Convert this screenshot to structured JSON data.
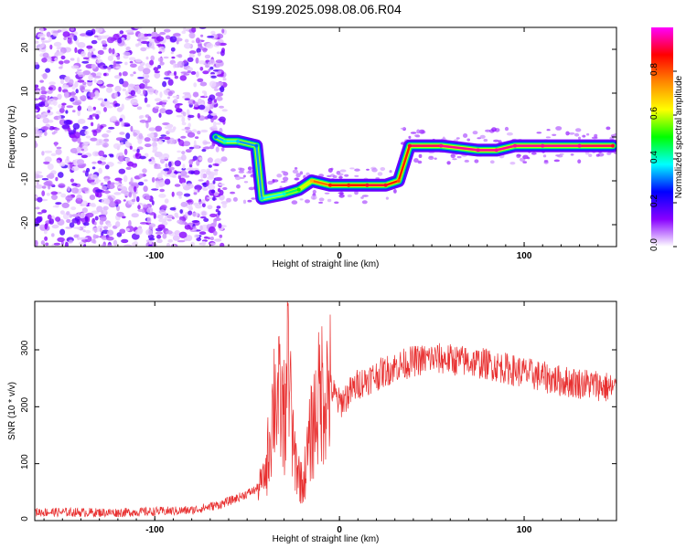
{
  "title": "S199.2025.098.08.06.R04",
  "chart_data": [
    {
      "type": "heatmap",
      "xlabel": "Height of straight line (km)",
      "ylabel": "Frequency (Hz)",
      "xlim": [
        -165,
        150
      ],
      "ylim": [
        -25,
        25
      ],
      "xticks": [
        -100,
        0,
        100
      ],
      "yticks": [
        -20,
        -10,
        0,
        10,
        20
      ],
      "colorbar": {
        "label": "Normalized spectral amplitude",
        "ticks": [
          "0.0",
          "0.2",
          "0.4",
          "0.6",
          "0.8"
        ],
        "range": [
          0,
          1
        ],
        "colors": [
          "#ffffff",
          "#8800ff",
          "#0000ff",
          "#00ffff",
          "#00ff00",
          "#ffff00",
          "#ff8800",
          "#ff0000",
          "#ff00ff"
        ]
      },
      "ridge": [
        {
          "x": -67,
          "y": 0,
          "level": 0.3
        },
        {
          "x": -62,
          "y": -1,
          "level": 0.4
        },
        {
          "x": -55,
          "y": -1,
          "level": 0.35
        },
        {
          "x": -45,
          "y": -2,
          "level": 0.3
        },
        {
          "x": -42,
          "y": -14,
          "level": 0.35
        },
        {
          "x": -30,
          "y": -13,
          "level": 0.4
        },
        {
          "x": -22,
          "y": -12,
          "level": 0.5
        },
        {
          "x": -15,
          "y": -10,
          "level": 0.7
        },
        {
          "x": -5,
          "y": -11,
          "level": 0.85
        },
        {
          "x": 5,
          "y": -11,
          "level": 0.85
        },
        {
          "x": 15,
          "y": -11,
          "level": 0.9
        },
        {
          "x": 25,
          "y": -11,
          "level": 0.9
        },
        {
          "x": 32,
          "y": -10,
          "level": 0.8
        },
        {
          "x": 38,
          "y": -2,
          "level": 0.9
        },
        {
          "x": 55,
          "y": -2,
          "level": 0.95
        },
        {
          "x": 75,
          "y": -3,
          "level": 0.95
        },
        {
          "x": 85,
          "y": -3,
          "level": 0.95
        },
        {
          "x": 95,
          "y": -2,
          "level": 0.95
        },
        {
          "x": 110,
          "y": -2,
          "level": 0.95
        },
        {
          "x": 130,
          "y": -2,
          "level": 0.95
        },
        {
          "x": 148,
          "y": -2,
          "level": 0.9
        }
      ]
    },
    {
      "type": "line",
      "xlabel": "Height of straight line (km)",
      "ylabel": "SNR (10 * v/v)",
      "xlim": [
        -165,
        150
      ],
      "ylim": [
        0,
        385
      ],
      "xticks": [
        -100,
        0,
        100
      ],
      "yticks": [
        0,
        100,
        200,
        300
      ],
      "color": "#e83030",
      "envelope": {
        "x": [
          -165,
          -120,
          -80,
          -65,
          -55,
          -45,
          -40,
          -35,
          -30,
          -28,
          -25,
          -20,
          -15,
          -12,
          -10,
          -5,
          0,
          10,
          20,
          30,
          40,
          50,
          60,
          80,
          100,
          120,
          140,
          150
        ],
        "y": [
          15,
          14,
          18,
          28,
          40,
          55,
          80,
          230,
          180,
          280,
          120,
          60,
          160,
          200,
          230,
          235,
          205,
          240,
          255,
          270,
          280,
          285,
          283,
          275,
          260,
          245,
          238,
          230
        ]
      }
    }
  ]
}
